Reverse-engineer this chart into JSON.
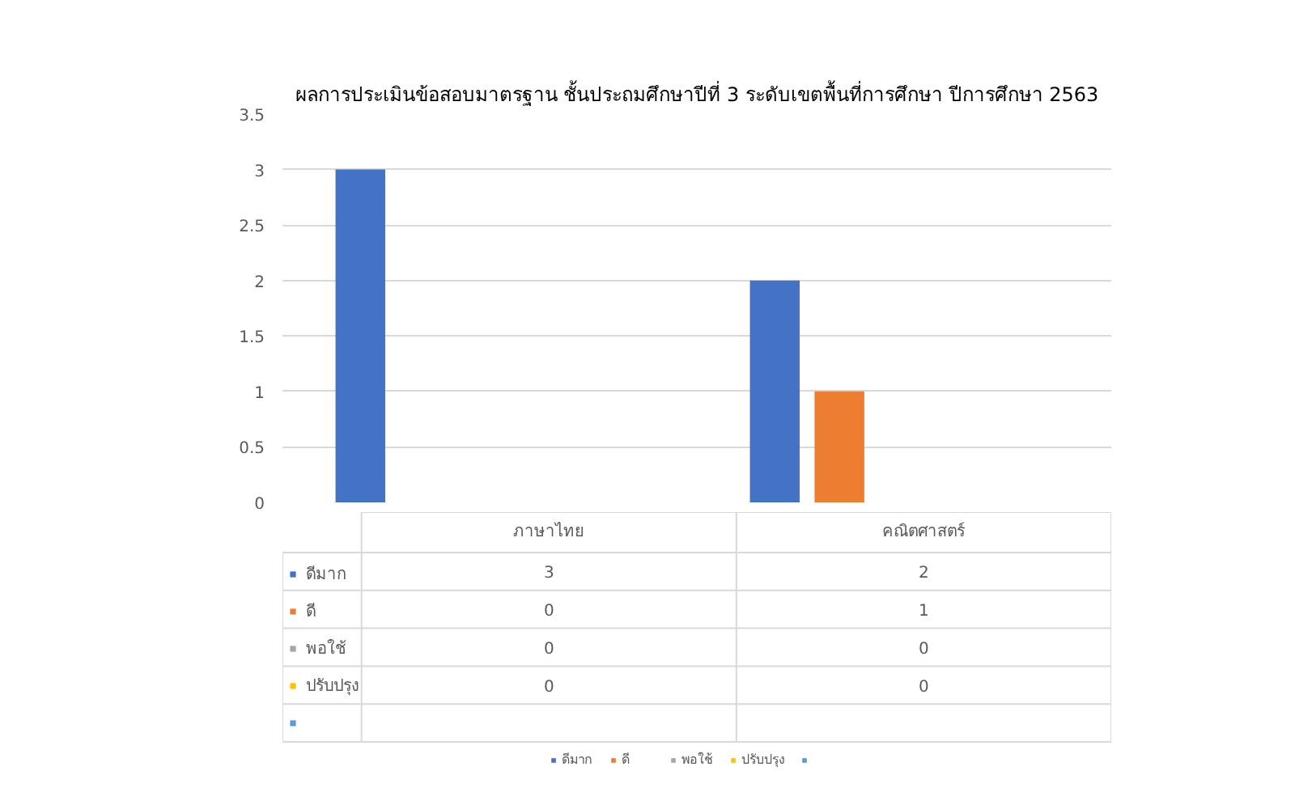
{
  "chart_data": {
    "type": "bar",
    "title": "ผลการประเมินข้อสอบมาตรฐาน ชั้นประถมศึกษาปีที่ 3 ระดับเขตพื้นที่การศึกษา ปีการศึกษา 2563",
    "categories": [
      "ภาษาไทย",
      "คณิตศาสตร์"
    ],
    "series": [
      {
        "name": "ดีมาก",
        "color": "#4472c4",
        "values": [
          3,
          2
        ]
      },
      {
        "name": "ดี",
        "color": "#ed7d31",
        "values": [
          0,
          1
        ]
      },
      {
        "name": "พอใช้",
        "color": "#a5a5a5",
        "values": [
          0,
          0
        ]
      },
      {
        "name": "ปรับปรุง",
        "color": "#ffc000",
        "values": [
          0,
          0
        ]
      },
      {
        "color": "#5b9bd5",
        "values": [
          null,
          null
        ]
      }
    ],
    "ylim": [
      0,
      3.5
    ],
    "yticks": [
      0,
      0.5,
      1,
      1.5,
      2,
      2.5,
      3,
      3.5
    ],
    "grid": "y",
    "legend": "bottom",
    "data_labels": true
  }
}
